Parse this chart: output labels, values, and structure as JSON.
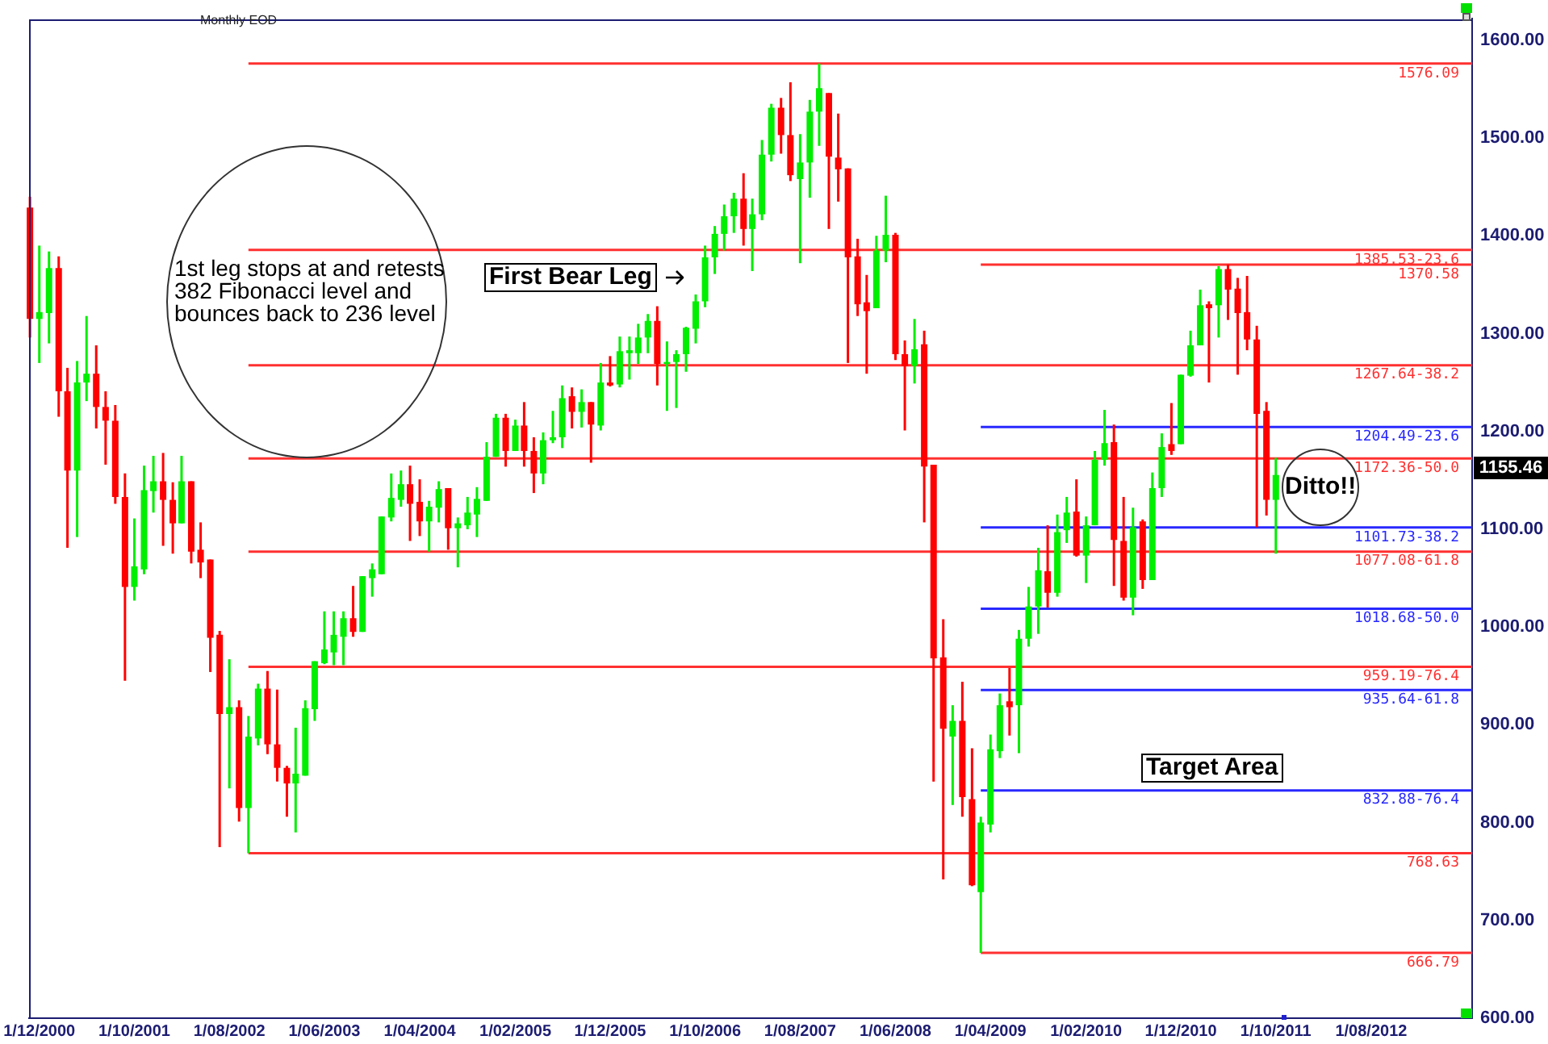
{
  "chart_data": {
    "type": "candlestick",
    "title": "Monthly EOD",
    "x": [
      "2000-11",
      "2000-12",
      "2001-01",
      "2001-02",
      "2001-03",
      "2001-04",
      "2001-05",
      "2001-06",
      "2001-07",
      "2001-08",
      "2001-09",
      "2001-10",
      "2001-11",
      "2001-12",
      "2002-01",
      "2002-02",
      "2002-03",
      "2002-04",
      "2002-05",
      "2002-06",
      "2002-07",
      "2002-08",
      "2002-09",
      "2002-10",
      "2002-11",
      "2002-12",
      "2003-01",
      "2003-02",
      "2003-03",
      "2003-04",
      "2003-05",
      "2003-06",
      "2003-07",
      "2003-08",
      "2003-09",
      "2003-10",
      "2003-11",
      "2003-12",
      "2004-01",
      "2004-02",
      "2004-03",
      "2004-04",
      "2004-05",
      "2004-06",
      "2004-07",
      "2004-08",
      "2004-09",
      "2004-10",
      "2004-11",
      "2004-12",
      "2005-01",
      "2005-02",
      "2005-03",
      "2005-04",
      "2005-05",
      "2005-06",
      "2005-07",
      "2005-08",
      "2005-09",
      "2005-10",
      "2005-11",
      "2005-12",
      "2006-01",
      "2006-02",
      "2006-03",
      "2006-04",
      "2006-05",
      "2006-06",
      "2006-07",
      "2006-08",
      "2006-09",
      "2006-10",
      "2006-11",
      "2006-12",
      "2007-01",
      "2007-02",
      "2007-03",
      "2007-04",
      "2007-05",
      "2007-06",
      "2007-07",
      "2007-08",
      "2007-09",
      "2007-10",
      "2007-11",
      "2007-12",
      "2008-01",
      "2008-02",
      "2008-03",
      "2008-04",
      "2008-05",
      "2008-06",
      "2008-07",
      "2008-08",
      "2008-09",
      "2008-10",
      "2008-11",
      "2008-12",
      "2009-01",
      "2009-02",
      "2009-03",
      "2009-04",
      "2009-05",
      "2009-06",
      "2009-07",
      "2009-08",
      "2009-09",
      "2009-10",
      "2009-11",
      "2009-12",
      "2010-01",
      "2010-02",
      "2010-03",
      "2010-04",
      "2010-05",
      "2010-06",
      "2010-07",
      "2010-08",
      "2010-09",
      "2010-10",
      "2010-11",
      "2010-12",
      "2011-01",
      "2011-02",
      "2011-03",
      "2011-04",
      "2011-05",
      "2011-06",
      "2011-07",
      "2011-08",
      "2011-09",
      "2011-10"
    ],
    "ohlc": [
      [
        1429,
        1440,
        1296,
        1315
      ],
      [
        1315,
        1390,
        1270,
        1322
      ],
      [
        1321,
        1384,
        1290,
        1367
      ],
      [
        1367,
        1379,
        1215,
        1241
      ],
      [
        1241,
        1265,
        1081,
        1160
      ],
      [
        1160,
        1272,
        1092,
        1250
      ],
      [
        1250,
        1318,
        1231,
        1259
      ],
      [
        1259,
        1288,
        1203,
        1225
      ],
      [
        1225,
        1241,
        1166,
        1211
      ],
      [
        1211,
        1227,
        1126,
        1133
      ],
      [
        1133,
        1157,
        945,
        1041
      ],
      [
        1041,
        1111,
        1027,
        1062
      ],
      [
        1059,
        1165,
        1054,
        1140
      ],
      [
        1139,
        1175,
        1117,
        1149
      ],
      [
        1149,
        1178,
        1083,
        1130
      ],
      [
        1130,
        1148,
        1075,
        1106
      ],
      [
        1106,
        1175,
        1106,
        1149
      ],
      [
        1149,
        1149,
        1065,
        1077
      ],
      [
        1079,
        1107,
        1050,
        1066
      ],
      [
        1069,
        1069,
        954,
        989
      ],
      [
        992,
        996,
        775,
        911
      ],
      [
        911,
        967,
        835,
        918
      ],
      [
        918,
        925,
        801,
        815
      ],
      [
        815,
        909,
        768.63,
        888
      ],
      [
        886,
        942,
        879,
        937
      ],
      [
        937,
        955,
        870,
        880
      ],
      [
        880,
        936,
        842,
        856
      ],
      [
        856,
        858,
        806,
        840
      ],
      [
        840,
        897,
        790,
        850
      ],
      [
        848,
        925,
        848,
        917
      ],
      [
        916,
        965,
        904,
        965
      ],
      [
        963,
        1016,
        962,
        977
      ],
      [
        974,
        1016,
        961,
        992
      ],
      [
        990,
        1016,
        961,
        1009
      ],
      [
        1009,
        1042,
        990,
        995
      ],
      [
        995,
        1052,
        995,
        1052
      ],
      [
        1050,
        1065,
        1031,
        1059
      ],
      [
        1054,
        1113,
        1054,
        1113
      ],
      [
        1112,
        1157,
        1108,
        1132
      ],
      [
        1130,
        1160,
        1123,
        1146
      ],
      [
        1146,
        1165,
        1088,
        1126
      ],
      [
        1128,
        1151,
        1093,
        1108
      ],
      [
        1108,
        1129,
        1077,
        1123
      ],
      [
        1122,
        1149,
        1107,
        1141
      ],
      [
        1142,
        1142,
        1079,
        1101
      ],
      [
        1101,
        1112,
        1061,
        1106
      ],
      [
        1104,
        1133,
        1100,
        1117
      ],
      [
        1115,
        1143,
        1092,
        1131
      ],
      [
        1129,
        1189,
        1129,
        1174
      ],
      [
        1174,
        1218,
        1174,
        1214
      ],
      [
        1214,
        1218,
        1164,
        1180
      ],
      [
        1180,
        1212,
        1180,
        1206
      ],
      [
        1206,
        1230,
        1164,
        1180
      ],
      [
        1180,
        1194,
        1137,
        1157
      ],
      [
        1157,
        1199,
        1146,
        1191
      ],
      [
        1191,
        1221,
        1188,
        1194
      ],
      [
        1194,
        1247,
        1183,
        1234
      ],
      [
        1236,
        1245,
        1203,
        1220
      ],
      [
        1220,
        1243,
        1204,
        1230
      ],
      [
        1230,
        1230,
        1168,
        1207
      ],
      [
        1206,
        1270,
        1201,
        1250
      ],
      [
        1250,
        1277,
        1246,
        1247
      ],
      [
        1248,
        1297,
        1245,
        1282
      ],
      [
        1280,
        1297,
        1253,
        1283
      ],
      [
        1280,
        1310,
        1269,
        1296
      ],
      [
        1296,
        1320,
        1280,
        1313
      ],
      [
        1313,
        1328,
        1247,
        1269
      ],
      [
        1269,
        1292,
        1221,
        1271
      ],
      [
        1271,
        1283,
        1224,
        1279
      ],
      [
        1279,
        1307,
        1261,
        1306
      ],
      [
        1305,
        1340,
        1290,
        1333
      ],
      [
        1333,
        1390,
        1327,
        1378
      ],
      [
        1378,
        1410,
        1361,
        1402
      ],
      [
        1402,
        1432,
        1385,
        1420
      ],
      [
        1420,
        1444,
        1403,
        1438
      ],
      [
        1438,
        1464,
        1390,
        1407
      ],
      [
        1407,
        1438,
        1364,
        1422
      ],
      [
        1422,
        1498,
        1416,
        1483
      ],
      [
        1483,
        1535,
        1476,
        1531
      ],
      [
        1531,
        1541,
        1484,
        1503
      ],
      [
        1503,
        1557,
        1456,
        1462
      ],
      [
        1458,
        1504,
        1372,
        1475
      ],
      [
        1475,
        1539,
        1439,
        1527
      ],
      [
        1527,
        1576.09,
        1492,
        1551
      ],
      [
        1546,
        1546,
        1407,
        1481
      ],
      [
        1480,
        1525,
        1435,
        1468
      ],
      [
        1469,
        1469,
        1270,
        1378
      ],
      [
        1379,
        1397,
        1318,
        1330
      ],
      [
        1332,
        1360,
        1259,
        1323
      ],
      [
        1326,
        1400,
        1326,
        1385
      ],
      [
        1385,
        1441,
        1373,
        1401
      ],
      [
        1401,
        1403,
        1273,
        1279
      ],
      [
        1279,
        1293,
        1201,
        1267
      ],
      [
        1267,
        1315,
        1249,
        1284
      ],
      [
        1289,
        1303,
        1107,
        1164
      ],
      [
        1166,
        1166,
        842,
        968
      ],
      [
        969,
        1008,
        742,
        896
      ],
      [
        888,
        920,
        818,
        904
      ],
      [
        904,
        944,
        806,
        826
      ],
      [
        824,
        876,
        735,
        736
      ],
      [
        729,
        806,
        666.79,
        800
      ],
      [
        798,
        890,
        790,
        875
      ],
      [
        873,
        932,
        866,
        920
      ],
      [
        924,
        958,
        889,
        918
      ],
      [
        920,
        997,
        871,
        988
      ],
      [
        988,
        1041,
        980,
        1021
      ],
      [
        1021,
        1081,
        993,
        1058
      ],
      [
        1057,
        1104,
        1020,
        1035
      ],
      [
        1035,
        1115,
        1031,
        1097
      ],
      [
        1099,
        1133,
        1086,
        1117
      ],
      [
        1118,
        1151,
        1072,
        1073
      ],
      [
        1073,
        1113,
        1045,
        1104
      ],
      [
        1104,
        1180,
        1104,
        1171
      ],
      [
        1171,
        1222,
        1165,
        1188
      ],
      [
        1189,
        1207,
        1042,
        1089
      ],
      [
        1088,
        1133,
        1027,
        1030
      ],
      [
        1030,
        1122,
        1012,
        1102
      ],
      [
        1108,
        1110,
        1039,
        1048
      ],
      [
        1048,
        1158,
        1048,
        1142
      ],
      [
        1142,
        1198,
        1133,
        1184
      ],
      [
        1187,
        1229,
        1176,
        1180
      ],
      [
        1187,
        1258,
        1187,
        1258
      ],
      [
        1257,
        1303,
        1256,
        1288
      ],
      [
        1288,
        1345,
        1288,
        1329
      ],
      [
        1330,
        1333,
        1250,
        1326
      ],
      [
        1329,
        1369,
        1296,
        1366
      ],
      [
        1366,
        1370.58,
        1314,
        1345
      ],
      [
        1346,
        1357,
        1258,
        1321
      ],
      [
        1322,
        1359,
        1283,
        1294
      ],
      [
        1294,
        1308,
        1102,
        1218
      ],
      [
        1221,
        1230,
        1114,
        1130
      ],
      [
        1130,
        1173,
        1075,
        1155.46
      ]
    ],
    "colors": [
      "#ff0000",
      "#00ee00",
      "#00ee00",
      "#ff0000",
      "#ff0000",
      "#00ee00",
      "#00ee00",
      "#ff0000",
      "#ff0000",
      "#ff0000",
      "#ff0000",
      "#00ee00",
      "#00ee00",
      "#00ee00",
      "#ff0000",
      "#ff0000",
      "#00ee00",
      "#ff0000",
      "#ff0000",
      "#ff0000",
      "#ff0000",
      "#00ee00",
      "#ff0000",
      "#00ee00",
      "#00ee00",
      "#ff0000",
      "#ff0000",
      "#ff0000",
      "#00ee00",
      "#00ee00",
      "#00ee00",
      "#00ee00",
      "#00ee00",
      "#00ee00",
      "#ff0000",
      "#00ee00",
      "#00ee00",
      "#00ee00",
      "#00ee00",
      "#00ee00",
      "#ff0000",
      "#ff0000",
      "#00ee00",
      "#00ee00",
      "#ff0000",
      "#00ee00",
      "#00ee00",
      "#00ee00",
      "#00ee00",
      "#00ee00",
      "#ff0000",
      "#00ee00",
      "#ff0000",
      "#ff0000",
      "#00ee00",
      "#00ee00",
      "#00ee00",
      "#ff0000",
      "#00ee00",
      "#ff0000",
      "#00ee00",
      "#ff0000",
      "#00ee00",
      "#00ee00",
      "#00ee00",
      "#00ee00",
      "#ff0000",
      "#00ee00",
      "#00ee00",
      "#00ee00",
      "#00ee00",
      "#00ee00",
      "#00ee00",
      "#00ee00",
      "#00ee00",
      "#ff0000",
      "#00ee00",
      "#00ee00",
      "#00ee00",
      "#ff0000",
      "#ff0000",
      "#00ee00",
      "#00ee00",
      "#00ee00",
      "#ff0000",
      "#ff0000",
      "#ff0000",
      "#ff0000",
      "#ff0000",
      "#00ee00",
      "#00ee00",
      "#ff0000",
      "#ff0000",
      "#00ee00",
      "#ff0000",
      "#ff0000",
      "#ff0000",
      "#00ee00",
      "#ff0000",
      "#ff0000",
      "#00ee00",
      "#00ee00",
      "#00ee00",
      "#ff0000",
      "#00ee00",
      "#00ee00",
      "#00ee00",
      "#ff0000",
      "#00ee00",
      "#00ee00",
      "#ff0000",
      "#00ee00",
      "#00ee00",
      "#00ee00",
      "#ff0000",
      "#ff0000",
      "#00ee00",
      "#ff0000",
      "#00ee00",
      "#00ee00",
      "#ff0000",
      "#00ee00",
      "#00ee00",
      "#00ee00",
      "#ff0000",
      "#00ee00",
      "#ff0000",
      "#ff0000",
      "#ff0000",
      "#ff0000",
      "#ff0000",
      "#00ee00"
    ],
    "series": [
      {
        "type": "line",
        "name": "1576.09",
        "color": "#ff3030",
        "x": [
          "2002-10",
          "2013-06-20"
        ],
        "values": [
          1576.09,
          1576.09
        ]
      },
      {
        "type": "line",
        "name": "1385.53-23.6",
        "color": "#ff3030",
        "x": [
          "2002-10",
          "2013-06-20"
        ],
        "values": [
          1385.53,
          1385.53
        ]
      },
      {
        "type": "line",
        "name": "1370.58",
        "color": "#ff3030",
        "x": [
          "2009-03",
          "2013-06-20"
        ],
        "values": [
          1370.58,
          1370.58
        ]
      },
      {
        "type": "line",
        "name": "1267.64-38.2",
        "color": "#ff3030",
        "x": [
          "2002-10",
          "2013-06-20"
        ],
        "values": [
          1267.64,
          1267.64
        ]
      },
      {
        "type": "line",
        "name": "1204.49-23.6",
        "color": "#2828ff",
        "x": [
          "2009-03",
          "2013-06-20"
        ],
        "values": [
          1204.49,
          1204.49
        ]
      },
      {
        "type": "line",
        "name": "1172.36-50.0",
        "color": "#ff3030",
        "x": [
          "2002-10",
          "2013-06-20"
        ],
        "values": [
          1172.36,
          1172.36
        ]
      },
      {
        "type": "line",
        "name": "1101.73-38.2",
        "color": "#2828ff",
        "x": [
          "2009-03",
          "2013-06-20"
        ],
        "values": [
          1101.73,
          1101.73
        ]
      },
      {
        "type": "line",
        "name": "1077.08-61.8",
        "color": "#ff3030",
        "x": [
          "2002-10",
          "2013-06-20"
        ],
        "values": [
          1077.08,
          1077.08
        ]
      },
      {
        "type": "line",
        "name": "1018.68-50.0",
        "color": "#2828ff",
        "x": [
          "2009-03",
          "2013-06-20"
        ],
        "values": [
          1018.68,
          1018.68
        ]
      },
      {
        "type": "line",
        "name": "959.19-76.4",
        "color": "#ff3030",
        "x": [
          "2002-10",
          "2013-06-20"
        ],
        "values": [
          959.19,
          959.19
        ]
      },
      {
        "type": "line",
        "name": "935.64-61.8",
        "color": "#2828ff",
        "x": [
          "2009-03",
          "2013-06-20"
        ],
        "values": [
          935.64,
          935.64
        ]
      },
      {
        "type": "line",
        "name": "832.88-76.4",
        "color": "#2828ff",
        "x": [
          "2009-03",
          "2013-06-20"
        ],
        "values": [
          832.88,
          832.88
        ]
      },
      {
        "type": "line",
        "name": "768.63",
        "color": "#ff3030",
        "x": [
          "2002-10",
          "2013-06-20"
        ],
        "values": [
          768.63,
          768.63
        ]
      },
      {
        "type": "line",
        "name": "666.79",
        "color": "#ff3030",
        "x": [
          "2009-03",
          "2013-06-20"
        ],
        "values": [
          666.79,
          666.79
        ]
      }
    ],
    "xlim": [
      "2000-10-28",
      "2013-06-20"
    ],
    "xticks": [
      {
        "value": "2000-12",
        "label": "1/12/2000"
      },
      {
        "value": "2001-10",
        "label": "1/10/2001"
      },
      {
        "value": "2002-08",
        "label": "1/08/2002"
      },
      {
        "value": "2003-06",
        "label": "1/06/2003"
      },
      {
        "value": "2004-04",
        "label": "1/04/2004"
      },
      {
        "value": "2005-02",
        "label": "1/02/2005"
      },
      {
        "value": "2005-12",
        "label": "1/12/2005"
      },
      {
        "value": "2006-10",
        "label": "1/10/2006"
      },
      {
        "value": "2007-08",
        "label": "1/08/2007"
      },
      {
        "value": "2008-06",
        "label": "1/06/2008"
      },
      {
        "value": "2009-04",
        "label": "1/04/2009"
      },
      {
        "value": "2010-02",
        "label": "1/02/2010"
      },
      {
        "value": "2010-12",
        "label": "1/12/2010"
      },
      {
        "value": "2011-10",
        "label": "1/10/2011"
      },
      {
        "value": "2012-08",
        "label": "1/08/2012"
      }
    ],
    "ylim": [
      600,
      1622
    ],
    "yticks": [
      {
        "value": 600,
        "label": "600.00"
      },
      {
        "value": 700,
        "label": "700.00"
      },
      {
        "value": 800,
        "label": "800.00"
      },
      {
        "value": 900,
        "label": "900.00"
      },
      {
        "value": 1000,
        "label": "1000.00"
      },
      {
        "value": 1100,
        "label": "1100.00"
      },
      {
        "value": 1200,
        "label": "1200.00"
      },
      {
        "value": 1300,
        "label": "1300.00"
      },
      {
        "value": 1400,
        "label": "1400.00"
      },
      {
        "value": 1500,
        "label": "1500.00"
      },
      {
        "value": 1600,
        "label": "1600.00"
      }
    ],
    "annotations": [
      "1st leg stops at and retests 382 Fibonacci level and bounces back to 236 level",
      "First Bear Leg",
      "Ditto!!",
      "Target Area",
      "1155.46"
    ],
    "grid": false,
    "legend": false
  }
}
